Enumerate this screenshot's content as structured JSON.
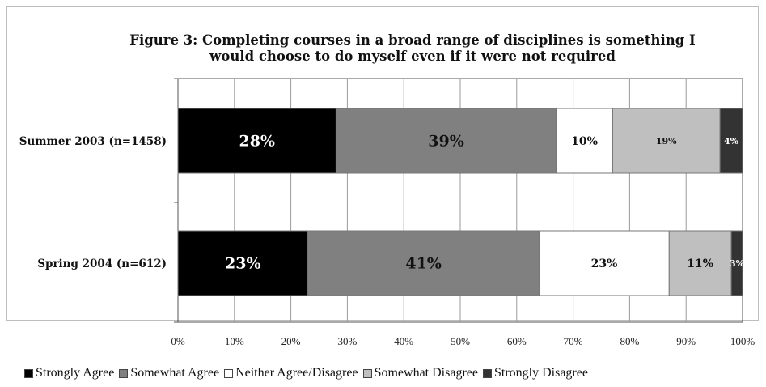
{
  "chart_data": {
    "type": "bar",
    "orientation": "horizontal",
    "stacked": true,
    "normalized": true,
    "title": "Figure 3: Completing courses in a broad range of disciplines is something I would choose to do myself even if it were not required",
    "categories": [
      "Summer 2003 (n=1458)",
      "Spring 2004 (n=612)"
    ],
    "series": [
      {
        "name": "Strongly Agree",
        "color": "#000000",
        "values": [
          28,
          23
        ],
        "labels": [
          "28%",
          "23%"
        ]
      },
      {
        "name": "Somewhat Agree",
        "color": "#808080",
        "values": [
          39,
          41
        ],
        "labels": [
          "39%",
          "41%"
        ]
      },
      {
        "name": "Neither Agree/Disagree",
        "color": "#ffffff",
        "values": [
          10,
          23
        ],
        "labels": [
          "10%",
          "23%"
        ]
      },
      {
        "name": "Somewhat Disagree",
        "color": "#bfbfbf",
        "values": [
          19,
          11
        ],
        "labels": [
          "19%",
          "11%"
        ]
      },
      {
        "name": "Strongly Disagree",
        "color": "#333333",
        "values": [
          4,
          3
        ],
        "labels": [
          "4%",
          "3%"
        ]
      }
    ],
    "xlim": [
      0,
      100
    ],
    "x_ticks": [
      0,
      10,
      20,
      30,
      40,
      50,
      60,
      70,
      80,
      90,
      100
    ],
    "x_tick_labels": [
      "0%",
      "10%",
      "20%",
      "30%",
      "40%",
      "50%",
      "60%",
      "70%",
      "80%",
      "90%",
      "100%"
    ],
    "grid": true,
    "legend_position": "bottom"
  }
}
